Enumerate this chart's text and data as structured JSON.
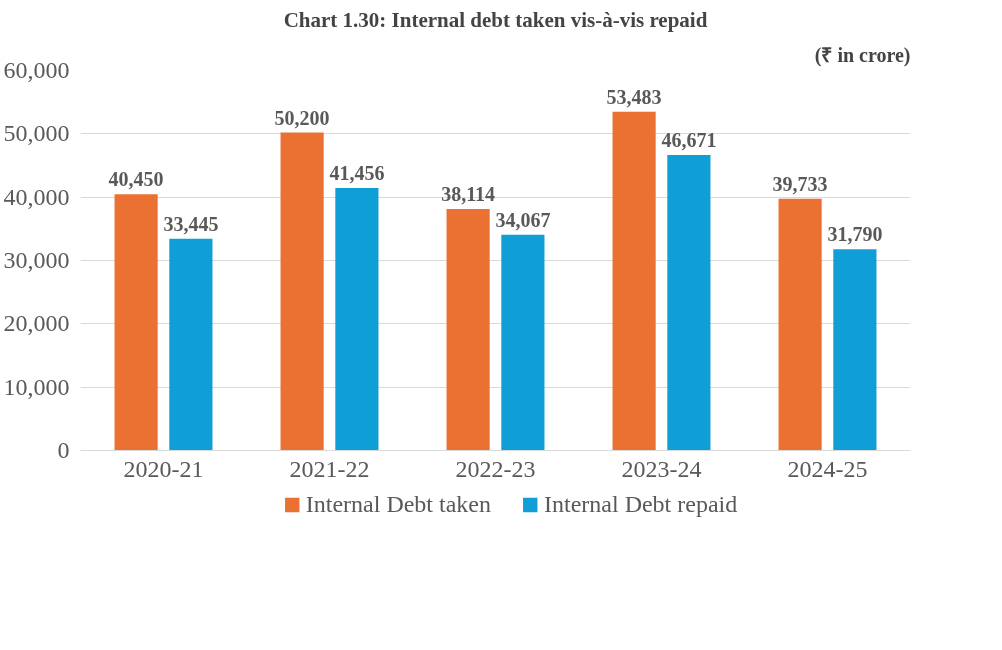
{
  "chart_data": {
    "type": "bar",
    "title": "Chart 1.30: Internal debt taken vis-à-vis repaid",
    "subtitle": "(₹ in crore)",
    "categories": [
      "2020-21",
      "2021-22",
      "2022-23",
      "2023-24",
      "2024-25"
    ],
    "series": [
      {
        "name": "Internal Debt taken",
        "color": "#ea7132",
        "values": [
          40450,
          50200,
          38114,
          53483,
          39733
        ],
        "value_labels": [
          "40,450",
          "50,200",
          "38,114",
          "53,483",
          "39,733"
        ]
      },
      {
        "name": "Internal Debt repaid",
        "color": "#0f9ed5",
        "values": [
          33445,
          41456,
          34067,
          46671,
          31790
        ],
        "value_labels": [
          "33,445",
          "41,456",
          "34,067",
          "46,671",
          "31,790"
        ]
      }
    ],
    "ylim": [
      0,
      60000
    ],
    "yticks": [
      {
        "value": 0,
        "label": "0"
      },
      {
        "value": 10000,
        "label": "10,000"
      },
      {
        "value": 20000,
        "label": "20,000"
      },
      {
        "value": 30000,
        "label": "30,000"
      },
      {
        "value": 40000,
        "label": "40,000"
      },
      {
        "value": 50000,
        "label": "50,000"
      },
      {
        "value": 60000,
        "label": "60,000"
      }
    ],
    "grid": "y",
    "legend": "bottom"
  }
}
